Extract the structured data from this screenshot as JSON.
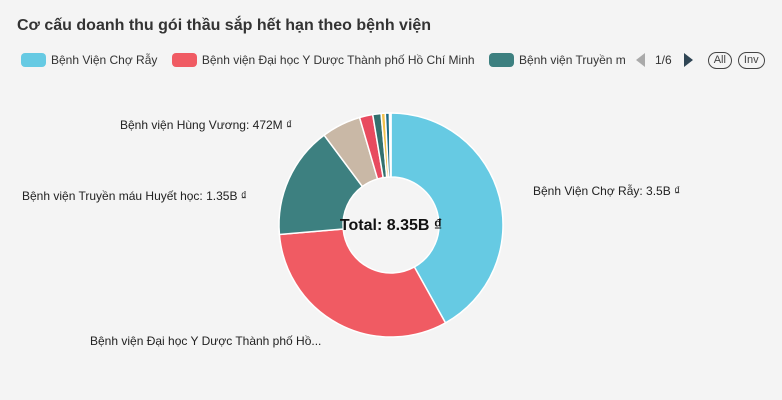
{
  "title": "Cơ cấu doanh thu gói thầu sắp hết hạn theo bệnh viện",
  "legend": {
    "items": [
      {
        "label": "Bệnh Viện Chợ Rẫy",
        "color": "#66cae3"
      },
      {
        "label": "Bệnh viện Đại học Y Dược Thành phố Hồ Chí Minh",
        "color": "#f05b63"
      },
      {
        "label": "Bệnh viện Truyền máu Huyết học",
        "color": "#3d8080"
      }
    ],
    "page_indicator": "1/6",
    "all_label": "All",
    "inv_label": "Inv"
  },
  "chart_data": {
    "type": "pie",
    "title": "Cơ cấu doanh thu gói thầu sắp hết hạn theo bệnh viện",
    "center_label": "Total: 8.35B ₫",
    "slices": [
      {
        "name": "Bệnh Viện Chợ Rẫy",
        "value": 3.5,
        "color": "#66cae3",
        "label": "Bệnh Viện Chợ Rẫy: 3.5B ₫"
      },
      {
        "name": "Bệnh viện Đại học Y Dược Thành phố Hồ Chí Minh",
        "value": 2.65,
        "color": "#f05b63",
        "label": "Bệnh viện Đại học Y Dược Thành phố Hồ..."
      },
      {
        "name": "Bệnh viện Truyền máu Huyết học",
        "value": 1.35,
        "color": "#3d8080",
        "label": "Bệnh viện Truyền máu Huyết học: 1.35B ₫"
      },
      {
        "name": "Bệnh viện Hùng Vương",
        "value": 0.472,
        "color": "#c9b8a6",
        "label": "Bệnh viện Hùng Vương: 472M ₫"
      },
      {
        "name": "",
        "value": 0.16,
        "color": "#e84a5f",
        "label": ""
      },
      {
        "name": "",
        "value": 0.1,
        "color": "#33706e",
        "label": ""
      },
      {
        "name": "",
        "value": 0.05,
        "color": "#f2c14e",
        "label": ""
      },
      {
        "name": "",
        "value": 0.05,
        "color": "#1d6b86",
        "label": ""
      },
      {
        "name": "",
        "value": 0.018,
        "color": "#a9d8e6",
        "label": ""
      }
    ]
  }
}
